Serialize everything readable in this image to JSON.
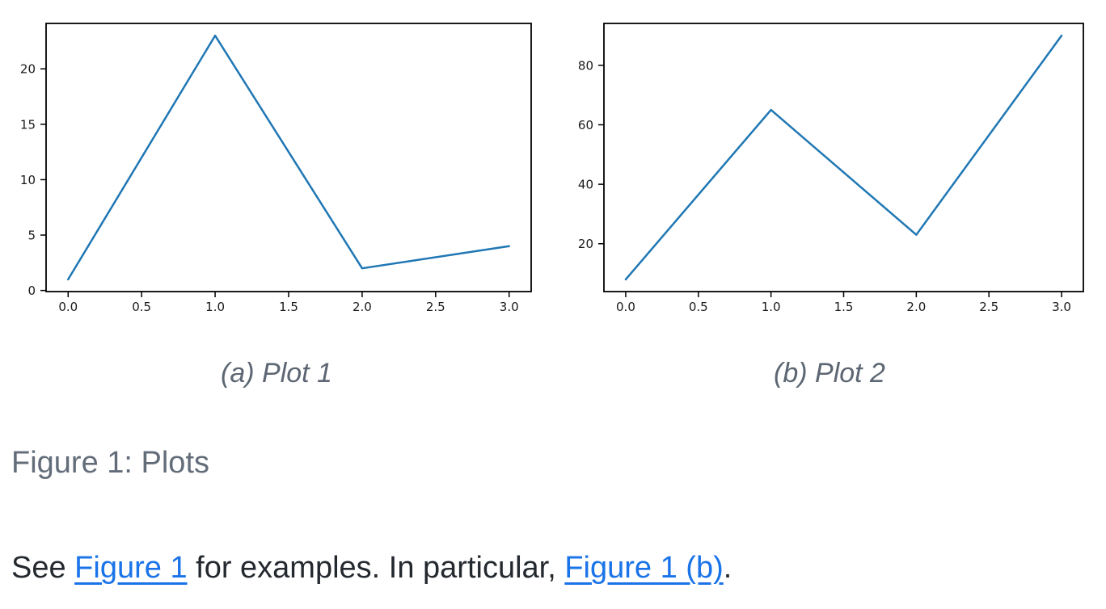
{
  "page": {
    "background": "#ffffff"
  },
  "figure": {
    "caption": "Figure 1: Plots"
  },
  "body_text": {
    "segments": [
      {
        "type": "plain",
        "text": "See "
      },
      {
        "type": "link",
        "text": "Figure 1",
        "name": "figure-1-link"
      },
      {
        "type": "plain",
        "text": " for examples. In particular, "
      },
      {
        "type": "link",
        "text": "Figure 1 (b)",
        "name": "figure-1b-link"
      },
      {
        "type": "plain",
        "text": "."
      }
    ]
  },
  "colors": {
    "line": "#1f77b4",
    "link": "#1a73e8",
    "caption_text": "#5d6673",
    "figure_caption_text": "#636d7a",
    "body_text": "#24292f",
    "axis": "#000000",
    "tick_label": "#1a1a1a"
  },
  "chart_data": [
    {
      "type": "line",
      "caption": "(a) Plot 1",
      "title": "",
      "xlabel": "",
      "ylabel": "",
      "x": [
        0,
        1,
        2,
        3
      ],
      "y": [
        1,
        23,
        2,
        4
      ],
      "xlim": [
        -0.15,
        3.15
      ],
      "ylim": [
        -0.1,
        24.1
      ],
      "xticks": [
        0,
        0.5,
        1,
        1.5,
        2,
        2.5,
        3
      ],
      "xtick_labels": [
        "0.0",
        "0.5",
        "1.0",
        "1.5",
        "2.0",
        "2.5",
        "3.0"
      ],
      "yticks": [
        0,
        5,
        10,
        15,
        20
      ],
      "ytick_labels": [
        "0",
        "5",
        "10",
        "15",
        "20"
      ],
      "line_color": "#1f77b4",
      "grid": false,
      "legend": null
    },
    {
      "type": "line",
      "caption": "(b) Plot 2",
      "title": "",
      "xlabel": "",
      "ylabel": "",
      "x": [
        0,
        1,
        2,
        3
      ],
      "y": [
        8,
        65,
        23,
        90
      ],
      "xlim": [
        -0.15,
        3.15
      ],
      "ylim": [
        3.9,
        94.1
      ],
      "xticks": [
        0,
        0.5,
        1,
        1.5,
        2,
        2.5,
        3
      ],
      "xtick_labels": [
        "0.0",
        "0.5",
        "1.0",
        "1.5",
        "2.0",
        "2.5",
        "3.0"
      ],
      "yticks": [
        20,
        40,
        60,
        80
      ],
      "ytick_labels": [
        "20",
        "40",
        "60",
        "80"
      ],
      "line_color": "#1f77b4",
      "grid": false,
      "legend": null
    }
  ]
}
